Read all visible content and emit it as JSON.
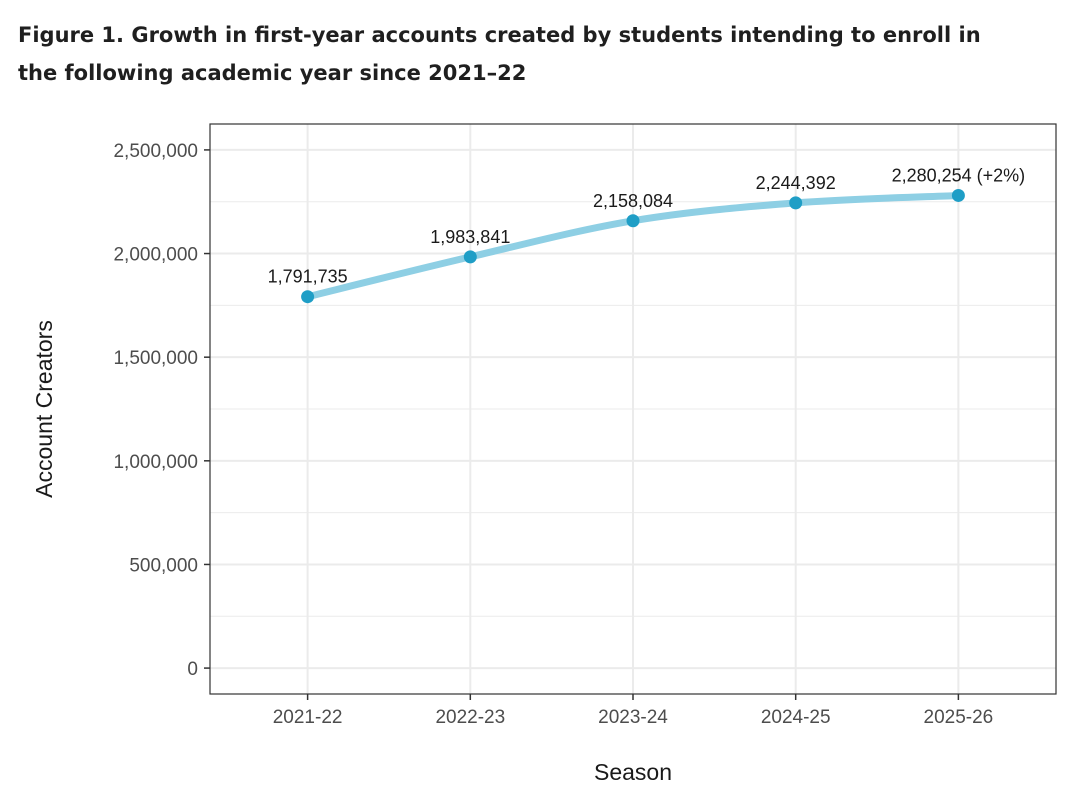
{
  "figure": {
    "title_line1": "Figure 1. Growth in first-year accounts created by students intending to enroll in",
    "title_line2": "the following academic year since 2021–22"
  },
  "chart_data": {
    "type": "line",
    "title": "Figure 1. Growth in first-year accounts created by students intending to enroll in the following academic year since 2021–22",
    "xlabel": "Season",
    "ylabel": "Account Creators",
    "categories": [
      "2021-22",
      "2022-23",
      "2023-24",
      "2024-25",
      "2025-26"
    ],
    "values": [
      1791735,
      1983841,
      2158084,
      2244392,
      2280254
    ],
    "data_labels": [
      "1,791,735",
      "1,983,841",
      "2,158,084",
      "2,244,392",
      "2,280,254 (+2%)"
    ],
    "ylim": [
      -125000,
      2625000
    ],
    "yticks": [
      0,
      500000,
      1000000,
      1500000,
      2000000,
      2500000
    ],
    "ytick_labels": [
      "0",
      "500,000",
      "1,000,000",
      "1,500,000",
      "2,000,000",
      "2,500,000"
    ],
    "grid": true,
    "line_color": "#8ecfe4",
    "point_color": "#1f9ec6",
    "panel_border_color": "#333333",
    "grid_color": "#ebebeb"
  }
}
